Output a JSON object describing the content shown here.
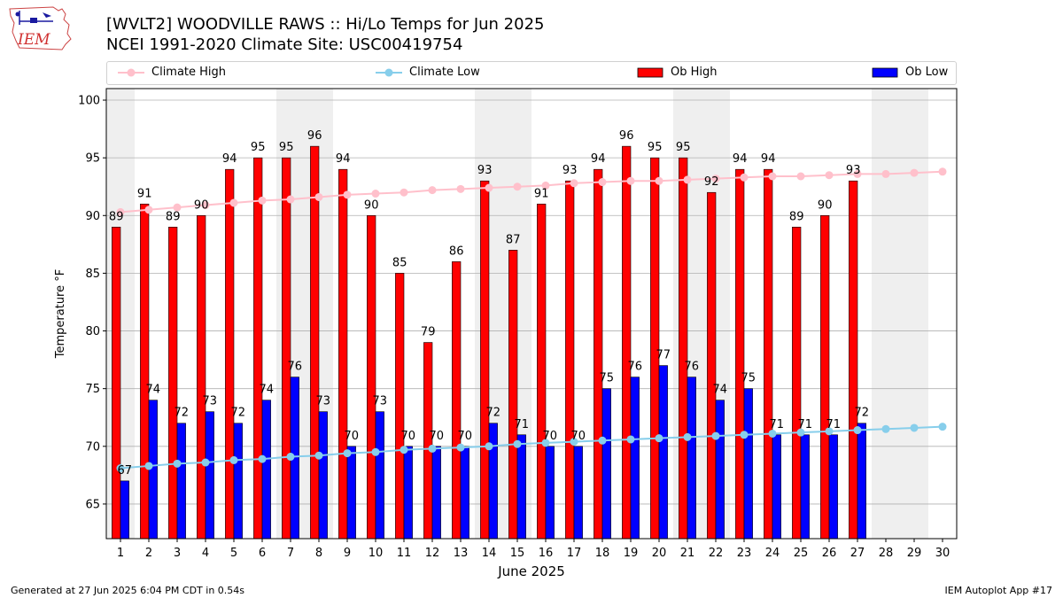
{
  "header": {
    "title_line1": "[WVLT2] WOODVILLE RAWS :: Hi/Lo Temps for Jun 2025",
    "title_line2": "NCEI 1991-2020 Climate Site: USC00419754",
    "logo_text": "IEM"
  },
  "legend": {
    "climate_high": "Climate High",
    "climate_low": "Climate Low",
    "ob_high": "Ob High",
    "ob_low": "Ob Low"
  },
  "footer": {
    "generated": "Generated at 27 Jun 2025 6:04 PM CDT in 0.54s",
    "app": "IEM Autoplot App #17"
  },
  "colors": {
    "ob_high": "#ff0000",
    "ob_low": "#0000ff",
    "climate_high": "#ffc0cb",
    "climate_low": "#87ceeb",
    "weekend_band": "#efefef",
    "grid": "#b0b0b0"
  },
  "chart_data": {
    "type": "bar",
    "title": "[WVLT2] WOODVILLE RAWS :: Hi/Lo Temps for Jun 2025",
    "xlabel": "June 2025",
    "ylabel": "Temperature °F",
    "ylim": [
      62,
      101
    ],
    "yticks": [
      65,
      70,
      75,
      80,
      85,
      90,
      95,
      100
    ],
    "categories": [
      "1",
      "2",
      "3",
      "4",
      "5",
      "6",
      "7",
      "8",
      "9",
      "10",
      "11",
      "12",
      "13",
      "14",
      "15",
      "16",
      "17",
      "18",
      "19",
      "20",
      "21",
      "22",
      "23",
      "24",
      "25",
      "26",
      "27",
      "28",
      "29",
      "30"
    ],
    "shaded_days": [
      1,
      7,
      8,
      14,
      15,
      21,
      22,
      28,
      29
    ],
    "series": [
      {
        "name": "Ob High",
        "kind": "bar",
        "values": [
          89,
          91,
          89,
          90,
          94,
          95,
          95,
          96,
          94,
          90,
          85,
          79,
          86,
          93,
          87,
          91,
          93,
          94,
          96,
          95,
          95,
          92,
          94,
          94,
          89,
          90,
          93,
          null,
          null,
          null
        ]
      },
      {
        "name": "Ob Low",
        "kind": "bar",
        "values": [
          67,
          74,
          72,
          73,
          72,
          74,
          76,
          73,
          70,
          73,
          70,
          70,
          70,
          72,
          71,
          70,
          70,
          75,
          76,
          77,
          76,
          74,
          75,
          71,
          71,
          71,
          72,
          null,
          null,
          null
        ]
      },
      {
        "name": "Climate High",
        "kind": "line",
        "values": [
          90.3,
          90.5,
          90.7,
          90.9,
          91.1,
          91.3,
          91.4,
          91.6,
          91.8,
          91.9,
          92.0,
          92.2,
          92.3,
          92.4,
          92.5,
          92.6,
          92.8,
          92.9,
          93.0,
          93.0,
          93.1,
          93.2,
          93.3,
          93.4,
          93.4,
          93.5,
          93.6,
          93.6,
          93.7,
          93.8
        ]
      },
      {
        "name": "Climate Low",
        "kind": "line",
        "values": [
          68.1,
          68.3,
          68.5,
          68.6,
          68.8,
          68.9,
          69.1,
          69.2,
          69.4,
          69.5,
          69.7,
          69.8,
          69.9,
          70.0,
          70.2,
          70.3,
          70.4,
          70.5,
          70.6,
          70.7,
          70.8,
          70.9,
          71.0,
          71.1,
          71.2,
          71.3,
          71.4,
          71.5,
          71.6,
          71.7
        ]
      }
    ]
  }
}
